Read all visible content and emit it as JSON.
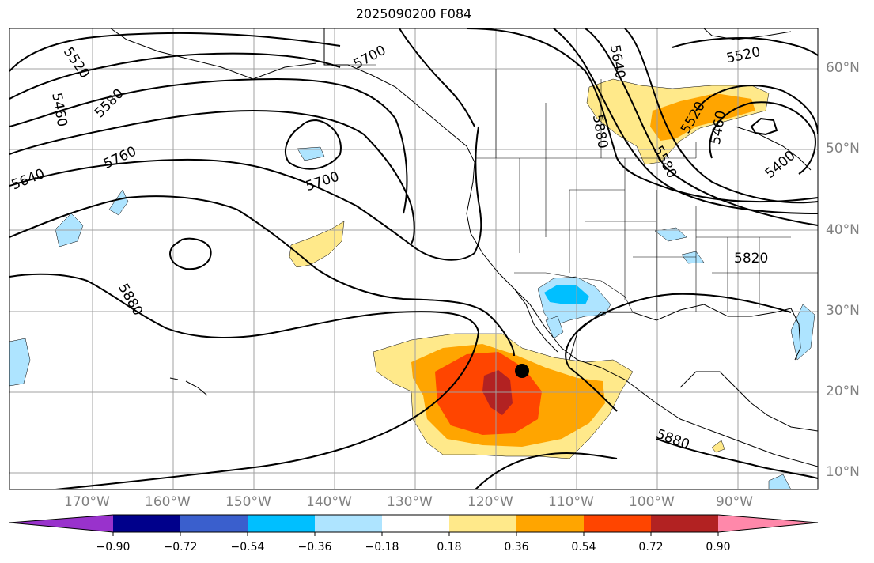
{
  "title": "2025090200 F084",
  "lat_labels": [
    "60°N",
    "50°N",
    "40°N",
    "30°N",
    "20°N",
    "10°N"
  ],
  "lon_labels": [
    "170°W",
    "160°W",
    "150°W",
    "140°W",
    "130°W",
    "120°W",
    "110°W",
    "100°W",
    "90°W"
  ],
  "contour_labels": [
    "5520",
    "5460",
    "5580",
    "5640",
    "5760",
    "5700",
    "5880",
    "5640",
    "5700",
    "5520",
    "5460",
    "5580",
    "5400",
    "5820",
    "5880",
    "5520"
  ],
  "colorbar": {
    "ticks": [
      "−0.90",
      "−0.72",
      "−0.54",
      "−0.36",
      "−0.18",
      "0.18",
      "0.36",
      "0.54",
      "0.72",
      "0.90"
    ],
    "colors": [
      "#9932cc",
      "#00008b",
      "#3a5fcd",
      "#00bfff",
      "#aee4ff",
      "#ffffff",
      "#ffe98a",
      "#ffa500",
      "#ff4500",
      "#b22222",
      "#ff88aa"
    ]
  },
  "marker": {
    "lat": 22.6,
    "lon": -116.8,
    "color": "#000000"
  }
}
